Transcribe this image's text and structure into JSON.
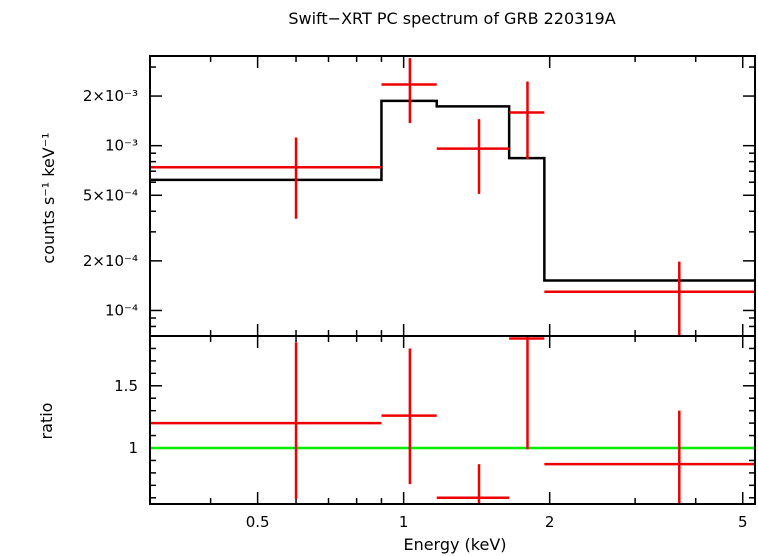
{
  "chart_data": [
    {
      "type": "step",
      "title": "Swift−XRT PC spectrum of GRB 220319A",
      "ylabel": "counts s⁻¹ keV⁻¹",
      "xscale": "log",
      "yscale": "log",
      "xlim": [
        0.3,
        5.3
      ],
      "ylim": [
        7e-05,
        0.0035
      ],
      "yticks": [
        {
          "value": 0.0001,
          "label": "10⁻⁴"
        },
        {
          "value": 0.0002,
          "label": "2×10⁻⁴"
        },
        {
          "value": 0.0005,
          "label": "5×10⁻⁴"
        },
        {
          "value": 0.001,
          "label": "10⁻³"
        },
        {
          "value": 0.002,
          "label": "2×10⁻³"
        }
      ],
      "series": [
        {
          "kind": "data",
          "color": "#ee0000",
          "points": [
            {
              "x": 0.6,
              "xlo": 0.3,
              "xhi": 0.9,
              "y": 0.00074,
              "ylo": 0.00036,
              "yhi": 0.00112
            },
            {
              "x": 1.03,
              "xlo": 0.9,
              "xhi": 1.17,
              "y": 0.00235,
              "ylo": 0.00137,
              "yhi": 0.0034
            },
            {
              "x": 1.43,
              "xlo": 1.17,
              "xhi": 1.65,
              "y": 0.00096,
              "ylo": 0.00051,
              "yhi": 0.00145
            },
            {
              "x": 1.8,
              "xlo": 1.65,
              "xhi": 1.95,
              "y": 0.00159,
              "ylo": 0.00083,
              "yhi": 0.00245
            },
            {
              "x": 3.7,
              "xlo": 1.95,
              "xhi": 5.3,
              "y": 0.00013,
              "ylo": 7e-05,
              "yhi": 0.000198
            }
          ]
        },
        {
          "kind": "model",
          "color": "#000000",
          "bins": [
            {
              "xlo": 0.3,
              "xhi": 0.9,
              "y": 0.00062
            },
            {
              "xlo": 0.9,
              "xhi": 1.17,
              "y": 0.00187
            },
            {
              "xlo": 1.17,
              "xhi": 1.65,
              "y": 0.00173
            },
            {
              "xlo": 1.65,
              "xhi": 1.95,
              "y": 0.00084
            },
            {
              "xlo": 1.95,
              "xhi": 5.3,
              "y": 0.000152
            }
          ]
        }
      ]
    },
    {
      "type": "scatter",
      "ylabel": "ratio",
      "xlabel": "Energy (keV)",
      "xscale": "log",
      "yscale": "linear",
      "xlim": [
        0.3,
        5.3
      ],
      "ylim": [
        0.55,
        1.9
      ],
      "yticks": [
        {
          "value": 1,
          "label": "1"
        },
        {
          "value": 1.5,
          "label": "1.5"
        }
      ],
      "xticks": [
        {
          "value": 0.5,
          "label": "0.5"
        },
        {
          "value": 1,
          "label": "1"
        },
        {
          "value": 2,
          "label": "2"
        },
        {
          "value": 5,
          "label": "5"
        }
      ],
      "reference_line": {
        "y": 1,
        "color": "#00ee00"
      },
      "series": [
        {
          "kind": "ratio",
          "color": "#ee0000",
          "points": [
            {
              "x": 0.6,
              "xlo": 0.3,
              "xhi": 0.9,
              "y": 1.2,
              "ylo": 0.59,
              "yhi": 1.85
            },
            {
              "x": 1.03,
              "xlo": 0.9,
              "xhi": 1.17,
              "y": 1.26,
              "ylo": 0.71,
              "yhi": 1.8
            },
            {
              "x": 1.43,
              "xlo": 1.17,
              "xhi": 1.65,
              "y": 0.6,
              "ylo": 0.55,
              "yhi": 0.87
            },
            {
              "x": 1.8,
              "xlo": 1.65,
              "xhi": 1.95,
              "y": 1.88,
              "ylo": 0.99,
              "yhi": 1.9
            },
            {
              "x": 3.7,
              "xlo": 1.95,
              "xhi": 5.3,
              "y": 0.87,
              "ylo": 0.55,
              "yhi": 1.3
            }
          ]
        }
      ]
    }
  ]
}
